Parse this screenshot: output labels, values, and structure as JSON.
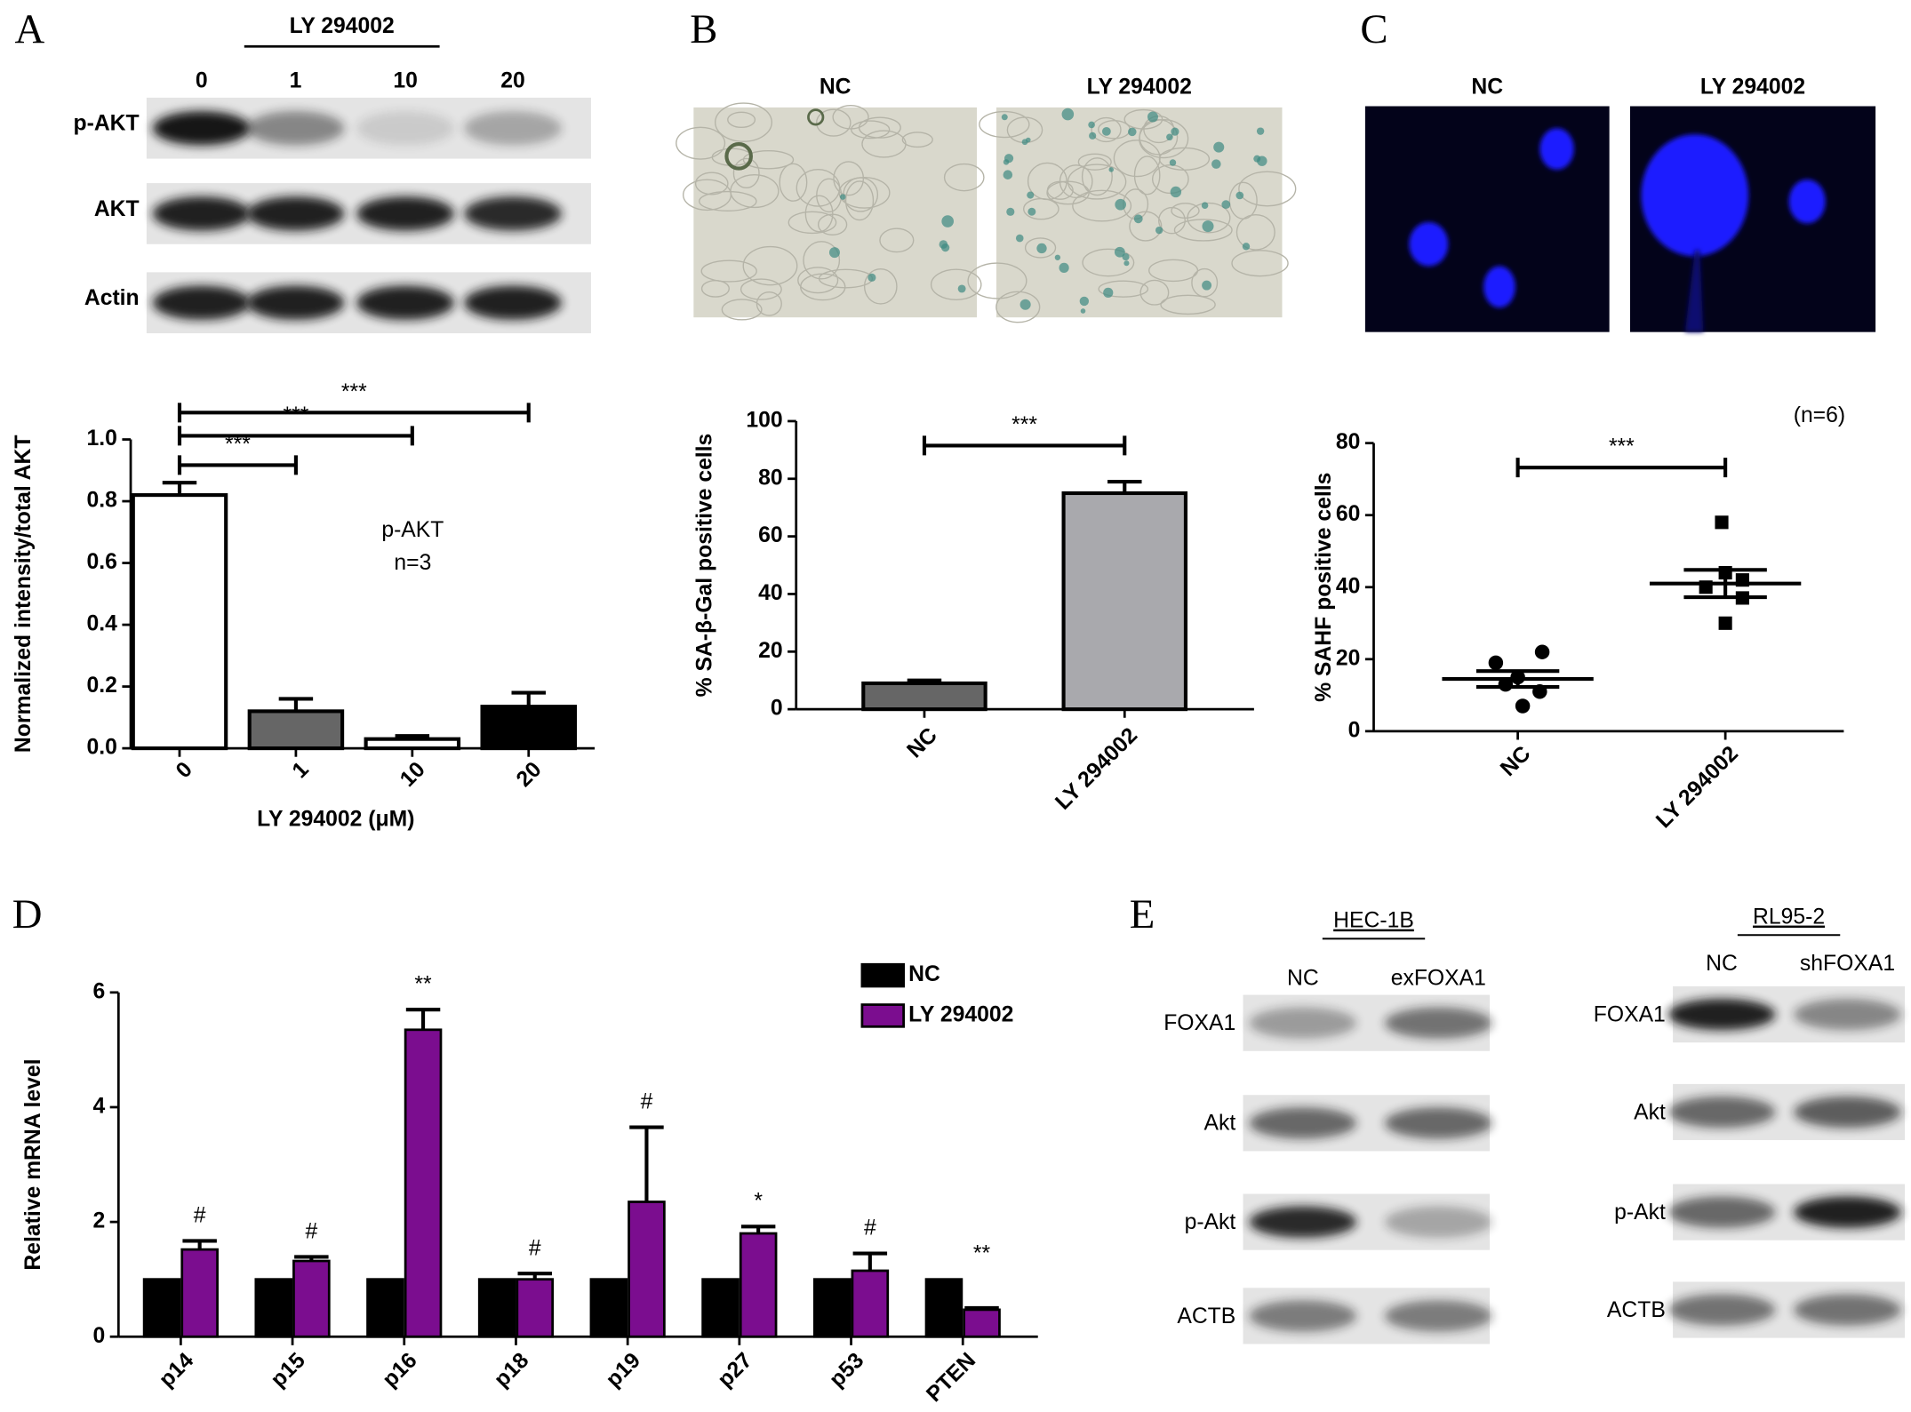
{
  "panels": [
    "A",
    "B",
    "C",
    "D",
    "E"
  ],
  "panel_a_blot": {
    "header": "LY 294002",
    "lanes": [
      "0",
      "1",
      "10",
      "20"
    ],
    "rows": [
      "p-AKT",
      "AKT",
      "Actin"
    ]
  },
  "panel_b_images": {
    "labels": [
      "NC",
      "LY 294002"
    ]
  },
  "panel_c_images": {
    "labels": [
      "NC",
      "LY 294002"
    ]
  },
  "panel_e_blots": [
    {
      "title": "HEC-1B",
      "lanes": [
        "NC",
        "exFOXA1"
      ],
      "rows": [
        "FOXA1",
        "Akt",
        "p-Akt",
        "ACTB"
      ]
    },
    {
      "title": "RL95-2",
      "lanes": [
        "NC",
        "shFOXA1"
      ],
      "rows": [
        "FOXA1",
        "Akt",
        "p-Akt",
        "ACTB"
      ]
    }
  ],
  "chart_data": [
    {
      "type": "bar",
      "categories": [
        "0",
        "1",
        "10",
        "20"
      ],
      "values": [
        0.82,
        0.12,
        0.03,
        0.135
      ],
      "errors": [
        0.04,
        0.04,
        0.01,
        0.045
      ],
      "colors": [
        "#ffffff",
        "#666666",
        "#ffffff",
        "#000000"
      ],
      "x_label": "LY 294002 (μM)",
      "y_label": "Normalized intensity/total AKT",
      "ylim": [
        0,
        1.0
      ],
      "yticks": [
        {
          "value": 0,
          "label": "0.0"
        },
        {
          "value": 0.2,
          "label": "0.2"
        },
        {
          "value": 0.4,
          "label": "0.4"
        },
        {
          "value": 0.6,
          "label": "0.6"
        },
        {
          "value": 0.8,
          "label": "0.8"
        },
        {
          "value": 1.0,
          "label": "1.0"
        }
      ],
      "annotations": [
        "p-AKT",
        "n=3"
      ],
      "comparisons": [
        {
          "pair": [
            "0",
            "1"
          ],
          "label": "***"
        },
        {
          "pair": [
            "0",
            "10"
          ],
          "label": "***"
        },
        {
          "pair": [
            "0",
            "20"
          ],
          "label": "***"
        }
      ]
    },
    {
      "type": "bar",
      "categories": [
        "NC",
        "LY 294002"
      ],
      "values": [
        9,
        75
      ],
      "errors": [
        1,
        4
      ],
      "colors": [
        "#666666",
        "#a9a9ad"
      ],
      "y_label": "% SA-β-Gal positive cells",
      "ylim": [
        0,
        100
      ],
      "yticks": [
        0,
        20,
        40,
        60,
        80,
        100
      ],
      "comparisons": [
        {
          "pair": [
            "NC",
            "LY 294002"
          ],
          "label": "***"
        }
      ]
    },
    {
      "type": "scatter",
      "categories": [
        "NC",
        "LY 294002"
      ],
      "series": [
        {
          "marker": "circle",
          "color": "#000000",
          "values": [
            22,
            19,
            15,
            13,
            11,
            7
          ]
        },
        {
          "marker": "square",
          "color": "#000000",
          "values": [
            58,
            44,
            42,
            40,
            37,
            30
          ]
        }
      ],
      "means": [
        14.5,
        41
      ],
      "sem": [
        2.2,
        3.8
      ],
      "y_label": "% SAHF positive cells",
      "ylim": [
        0,
        80
      ],
      "yticks": [
        0,
        20,
        40,
        60,
        80
      ],
      "annotations": [
        "(n=6)"
      ],
      "comparisons": [
        {
          "pair": [
            "NC",
            "LY 294002"
          ],
          "label": "***"
        }
      ]
    },
    {
      "type": "grouped_bar",
      "categories": [
        "p14",
        "p15",
        "p16",
        "p18",
        "p19",
        "p27",
        "p53",
        "PTEN"
      ],
      "series": [
        {
          "name": "NC",
          "color": "#000000",
          "values": [
            1,
            1,
            1,
            1,
            1,
            1,
            1,
            1
          ]
        },
        {
          "name": "LY 294002",
          "color": "#7b0d8f",
          "values": [
            1.52,
            1.32,
            5.35,
            1.0,
            2.35,
            1.8,
            1.15,
            0.47
          ],
          "errors": [
            0.15,
            0.07,
            0.35,
            0.1,
            1.3,
            0.12,
            0.3,
            0.03
          ]
        }
      ],
      "significance": [
        "#",
        "#",
        "**",
        "#",
        "#",
        "*",
        "#",
        "**"
      ],
      "y_label": "Relative mRNA level",
      "ylim": [
        0,
        6
      ],
      "yticks": [
        0,
        2,
        4,
        6
      ],
      "legend": "top-right"
    }
  ]
}
